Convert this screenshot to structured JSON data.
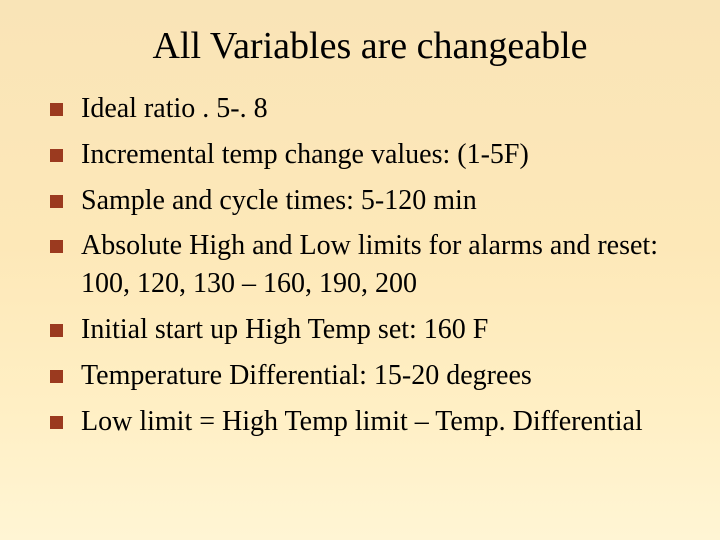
{
  "slide": {
    "title": "All Variables are changeable",
    "title_fontsize": 38,
    "body_fontsize": 28,
    "background_gradient": {
      "top": "#f9e4b7",
      "mid": "#fde8b8",
      "bottom": "#fff5d4"
    },
    "bullet_color": "#9b3a1f",
    "bullet_size": 13,
    "text_color": "#000000",
    "font_family": "Times New Roman",
    "bullets": [
      "Ideal ratio   . 5-. 8",
      "Incremental temp change values:  (1-5F)",
      "Sample and cycle times:   5-120 min",
      "Absolute High and Low limits for alarms and reset:  100, 120, 130 – 160, 190, 200",
      "Initial start up High Temp set:   160 F",
      "Temperature Differential:    15-20 degrees",
      "Low limit = High Temp limit – Temp. Differential"
    ]
  }
}
